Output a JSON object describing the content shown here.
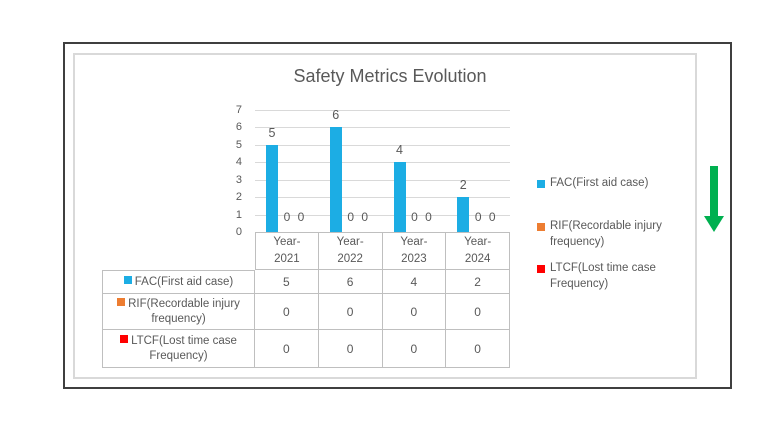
{
  "chart_data": {
    "type": "bar",
    "title": "Safety Metrics Evolution",
    "categories": [
      "Year-2021",
      "Year-2022",
      "Year-2023",
      "Year-2024"
    ],
    "series": [
      {
        "name": "FAC(First aid case)",
        "color": "#1cade4",
        "values": [
          5,
          6,
          4,
          2
        ]
      },
      {
        "name": "RIF(Recordable injury frequency)",
        "color": "#ed7d31",
        "values": [
          0,
          0,
          0,
          0
        ]
      },
      {
        "name": "LTCF(Lost time case Frequency)",
        "color": "#ff0000",
        "values": [
          0,
          0,
          0,
          0
        ]
      }
    ],
    "ylim": [
      0,
      7
    ],
    "yticks": [
      0,
      1,
      2,
      3,
      4,
      5,
      6,
      7
    ],
    "grid": true,
    "data_labels": true,
    "data_table": true,
    "legend_position": "right"
  },
  "legend": {
    "items": [
      {
        "label": "FAC(First aid case)",
        "color": "#1cade4"
      },
      {
        "label": "RIF(Recordable injury frequency)",
        "color": "#ed7d31"
      },
      {
        "label": "LTCF(Lost time case Frequency)",
        "color": "#ff0000"
      }
    ]
  },
  "annotations": {
    "down_arrow": {
      "direction": "down",
      "color": "#00b050"
    }
  },
  "colors": {
    "bar_blue": "#1cade4",
    "rif_orange": "#ed7d31",
    "ltcf_red": "#ff0000",
    "arrow_green": "#00b050",
    "text_gray": "#595959",
    "gridline_gray": "#d9d9d9",
    "table_border_gray": "#bfbfbf",
    "outer_frame_dark": "#3f3f3f",
    "inner_frame_light": "#d9d9d9"
  }
}
